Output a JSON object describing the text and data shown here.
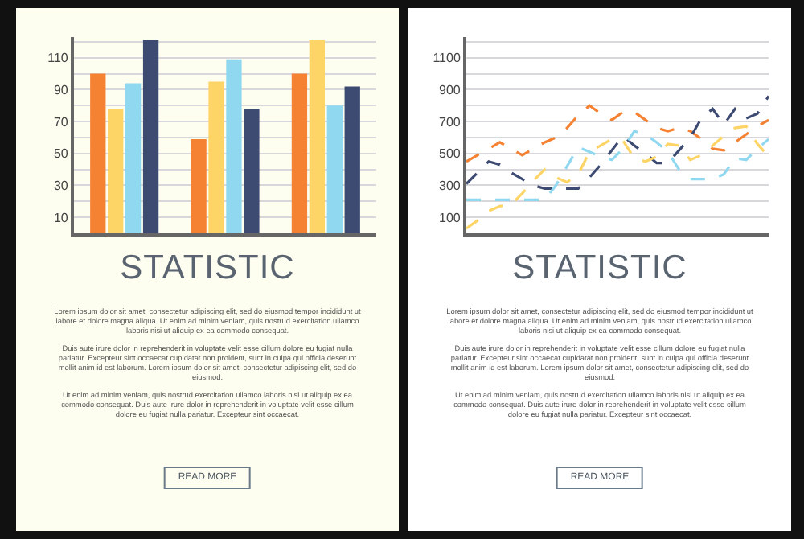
{
  "chart_data": [
    {
      "type": "bar",
      "title": "STATISTIC",
      "categories": [
        null,
        null,
        null
      ],
      "series": [
        {
          "color": "#f58233",
          "values": [
            100,
            59,
            100
          ]
        },
        {
          "color": "#fdd466",
          "values": [
            78,
            95,
            121
          ]
        },
        {
          "color": "#8fd8f0",
          "values": [
            94,
            109,
            80
          ]
        },
        {
          "color": "#3d4a72",
          "values": [
            121,
            78,
            92
          ]
        }
      ],
      "ylim": [
        0,
        123
      ],
      "yticks": [
        10,
        {
          "value": 20,
          "label": null
        },
        30,
        {
          "value": 40,
          "label": null
        },
        50,
        {
          "value": 60,
          "label": null
        },
        70,
        {
          "value": 80,
          "label": null
        },
        90,
        {
          "value": 100,
          "label": null
        },
        110,
        {
          "value": 120,
          "label": null
        }
      ],
      "grid": "y",
      "tick_labels": "y",
      "annotations": [
        "Lorem ipsum dolor sit amet, consectetur adipiscing elit, sed do eiusmod tempor incididunt ut labore et dolore magna aliqua. Ut enim ad minim veniam, quis nostrud exercitation ullamco laboris nisi ut aliquip ex ea commodo consequat.",
        "Duis aute irure dolor in reprehenderit in voluptate velit esse cillum dolore eu fugiat nulla pariatur. Excepteur sint occaecat cupidatat non proident, sunt in culpa qui officia deserunt mollit anim id est laborum. Lorem ipsum dolor sit amet, consectetur adipiscing elit, sed do eiusmod.",
        "Ut enim ad minim veniam, quis nostrud exercitation ullamco laboris nisi ut aliquip ex ea commodo consequat. Duis aute irure dolor in reprehenderit in voluptate velit esse cillum dolore eu fugiat nulla pariatur. Excepteur sint occaecat.",
        "READ MORE"
      ]
    },
    {
      "type": "line",
      "title": "STATISTIC",
      "line_style": "dashed",
      "marker": "none",
      "series": [
        {
          "color": "#f58233",
          "values": [
            450,
            490,
            530,
            570,
            530,
            490,
            530,
            570,
            600,
            660,
            740,
            800,
            750,
            710,
            760,
            760,
            710,
            660,
            640,
            660,
            640,
            590,
            530,
            520,
            570,
            620,
            670,
            710
          ]
        },
        {
          "color": "#3d4a72",
          "values": [
            310,
            380,
            450,
            430,
            380,
            340,
            300,
            280,
            280,
            280,
            280,
            350,
            430,
            520,
            610,
            550,
            500,
            440,
            440,
            520,
            600,
            720,
            780,
            680,
            780,
            720,
            750,
            860
          ]
        },
        {
          "color": "#fdd466",
          "values": [
            30,
            80,
            140,
            170,
            180,
            250,
            330,
            400,
            350,
            320,
            370,
            510,
            550,
            590,
            580,
            470,
            450,
            480,
            560,
            550,
            460,
            490,
            550,
            610,
            660,
            670,
            560,
            480
          ]
        },
        {
          "color": "#8fd8f0",
          "values": [
            210,
            210,
            210,
            210,
            210,
            210,
            210,
            210,
            300,
            420,
            540,
            510,
            480,
            460,
            530,
            640,
            620,
            570,
            510,
            400,
            340,
            340,
            340,
            370,
            470,
            460,
            530,
            590
          ]
        }
      ],
      "categories": [
        null,
        null,
        null,
        null,
        null,
        null,
        null,
        null,
        null,
        null,
        null,
        null,
        null,
        null,
        null,
        null,
        null,
        null,
        null,
        null,
        null,
        null,
        null,
        null,
        null,
        null,
        null,
        null
      ],
      "ylim": [
        0,
        1230
      ],
      "yticks": [
        100,
        {
          "value": 200,
          "label": null
        },
        300,
        {
          "value": 400,
          "label": null
        },
        500,
        {
          "value": 600,
          "label": null
        },
        700,
        {
          "value": 800,
          "label": null
        },
        900,
        {
          "value": 1000,
          "label": null
        },
        1100,
        {
          "value": 1200,
          "label": null
        }
      ],
      "grid": "y",
      "tick_labels": "y",
      "annotations": [
        "Lorem ipsum dolor sit amet, consectetur adipiscing elit, sed do eiusmod tempor incididunt ut labore et dolore magna aliqua. Ut enim ad minim veniam, quis nostrud exercitation ullamco laboris nisi ut aliquip ex ea commodo consequat.",
        "Duis aute irure dolor in reprehenderit in voluptate velit esse cillum dolore eu fugiat nulla pariatur. Excepteur sint occaecat cupidatat non proident, sunt in culpa qui officia deserunt mollit anim id est laborum. Lorem ipsum dolor sit amet, consectetur adipiscing elit, sed do eiusmod.",
        "Ut enim ad minim veniam, quis nostrud exercitation ullamco laboris nisi ut aliquip ex ea commodo consequat. Duis aute irure dolor in reprehenderit in voluptate velit esse cillum dolore eu fugiat nulla pariatur. Excepteur sint occaecat.",
        "READ MORE"
      ]
    }
  ]
}
